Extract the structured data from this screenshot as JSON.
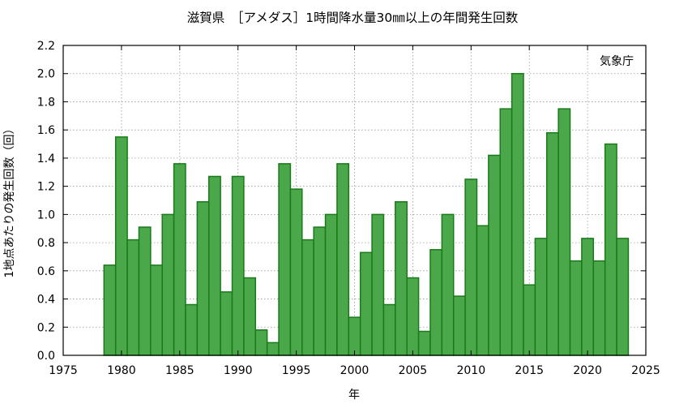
{
  "chart_data": {
    "type": "bar",
    "title": "滋賀県　［アメダス］1時間降水量30㎜以上の年間発生回数",
    "credit": "気象庁",
    "xlabel": "年",
    "ylabel": "1地点あたりの発生回数（回）",
    "xlim": [
      1975,
      2025
    ],
    "ylim": [
      0.0,
      2.2
    ],
    "x_ticks": [
      "1975",
      "1980",
      "1985",
      "1990",
      "1995",
      "2000",
      "2005",
      "2010",
      "2015",
      "2020",
      "2025"
    ],
    "y_ticks": [
      "0.0",
      "0.2",
      "0.4",
      "0.6",
      "0.8",
      "1.0",
      "1.2",
      "1.4",
      "1.6",
      "1.8",
      "2.0",
      "2.2"
    ],
    "grid": true,
    "bar_color": "#4aa84a",
    "bar_edge_color": "#1a7a1a",
    "years": [
      1979,
      1980,
      1981,
      1982,
      1983,
      1984,
      1985,
      1986,
      1987,
      1988,
      1989,
      1990,
      1991,
      1992,
      1993,
      1994,
      1995,
      1996,
      1997,
      1998,
      1999,
      2000,
      2001,
      2002,
      2003,
      2004,
      2005,
      2006,
      2007,
      2008,
      2009,
      2010,
      2011,
      2012,
      2013,
      2014,
      2015,
      2016,
      2017,
      2018,
      2019,
      2020,
      2021,
      2022,
      2023
    ],
    "values": [
      0.64,
      1.55,
      0.82,
      0.91,
      0.64,
      1.0,
      1.36,
      0.36,
      1.09,
      1.27,
      0.45,
      1.27,
      0.55,
      0.18,
      0.09,
      1.36,
      1.18,
      0.82,
      0.91,
      1.0,
      1.36,
      0.27,
      0.73,
      1.0,
      0.36,
      1.09,
      0.55,
      0.17,
      0.75,
      1.0,
      0.42,
      1.25,
      0.92,
      1.42,
      1.75,
      2.0,
      0.5,
      0.83,
      1.58,
      1.75,
      0.67,
      0.83,
      0.67,
      1.5,
      0.83
    ]
  }
}
